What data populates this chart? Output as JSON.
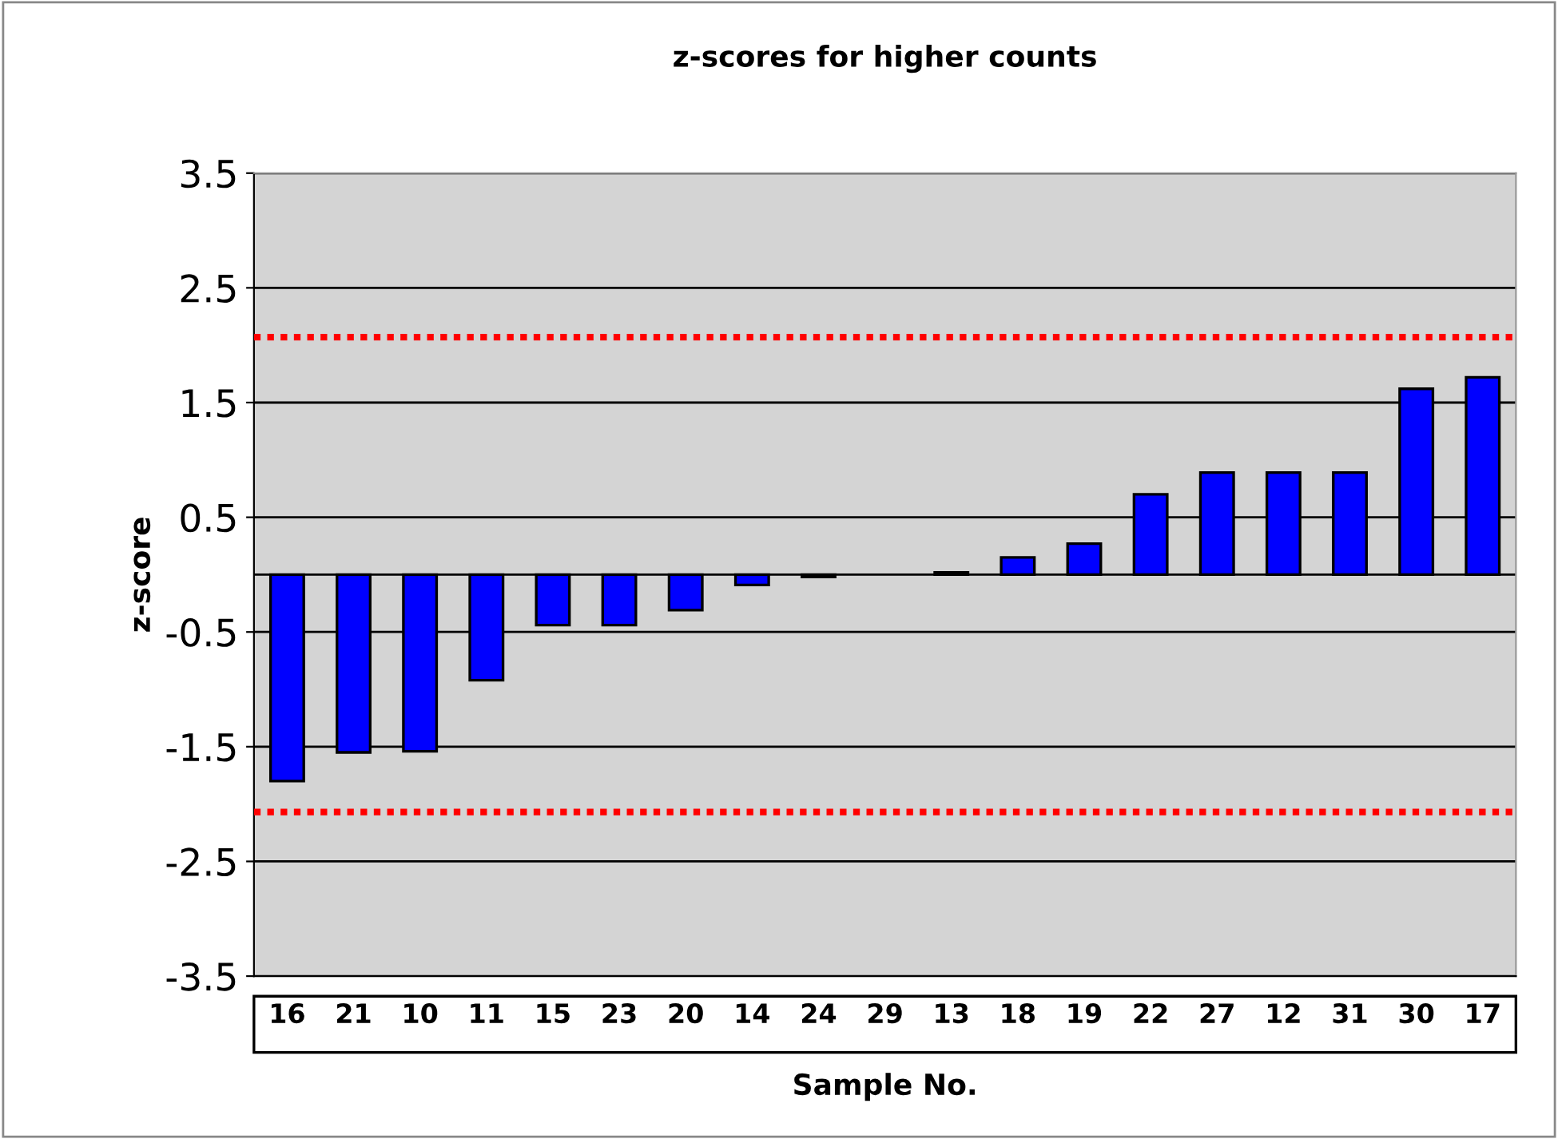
{
  "chart_data": {
    "type": "bar",
    "title": "z-scores for higher counts",
    "xlabel": "Sample No.",
    "ylabel": "z-score",
    "categories": [
      "16",
      "21",
      "10",
      "11",
      "15",
      "23",
      "20",
      "14",
      "24",
      "29",
      "13",
      "18",
      "19",
      "22",
      "27",
      "12",
      "31",
      "30",
      "17"
    ],
    "series": [
      {
        "color": "#0000ff",
        "values": [
          -1.8,
          -1.55,
          -1.54,
          -0.92,
          -0.44,
          -0.44,
          -0.31,
          -0.09,
          -0.02,
          null,
          0.02,
          0.15,
          0.27,
          0.7,
          0.89,
          0.89,
          0.89,
          1.62,
          1.72
        ]
      }
    ],
    "ylim": [
      -3.5,
      3.5
    ],
    "yticks": [
      -3.5,
      -2.5,
      -1.5,
      -0.5,
      0.5,
      1.5,
      2.5,
      3.5
    ],
    "grid": "y",
    "ref_lines": [
      {
        "axis": "y",
        "value": 2.07,
        "color": "#ff0000",
        "line_style": "dotted"
      },
      {
        "axis": "y",
        "value": -2.07,
        "color": "#ff0000",
        "line_style": "dotted"
      }
    ]
  }
}
